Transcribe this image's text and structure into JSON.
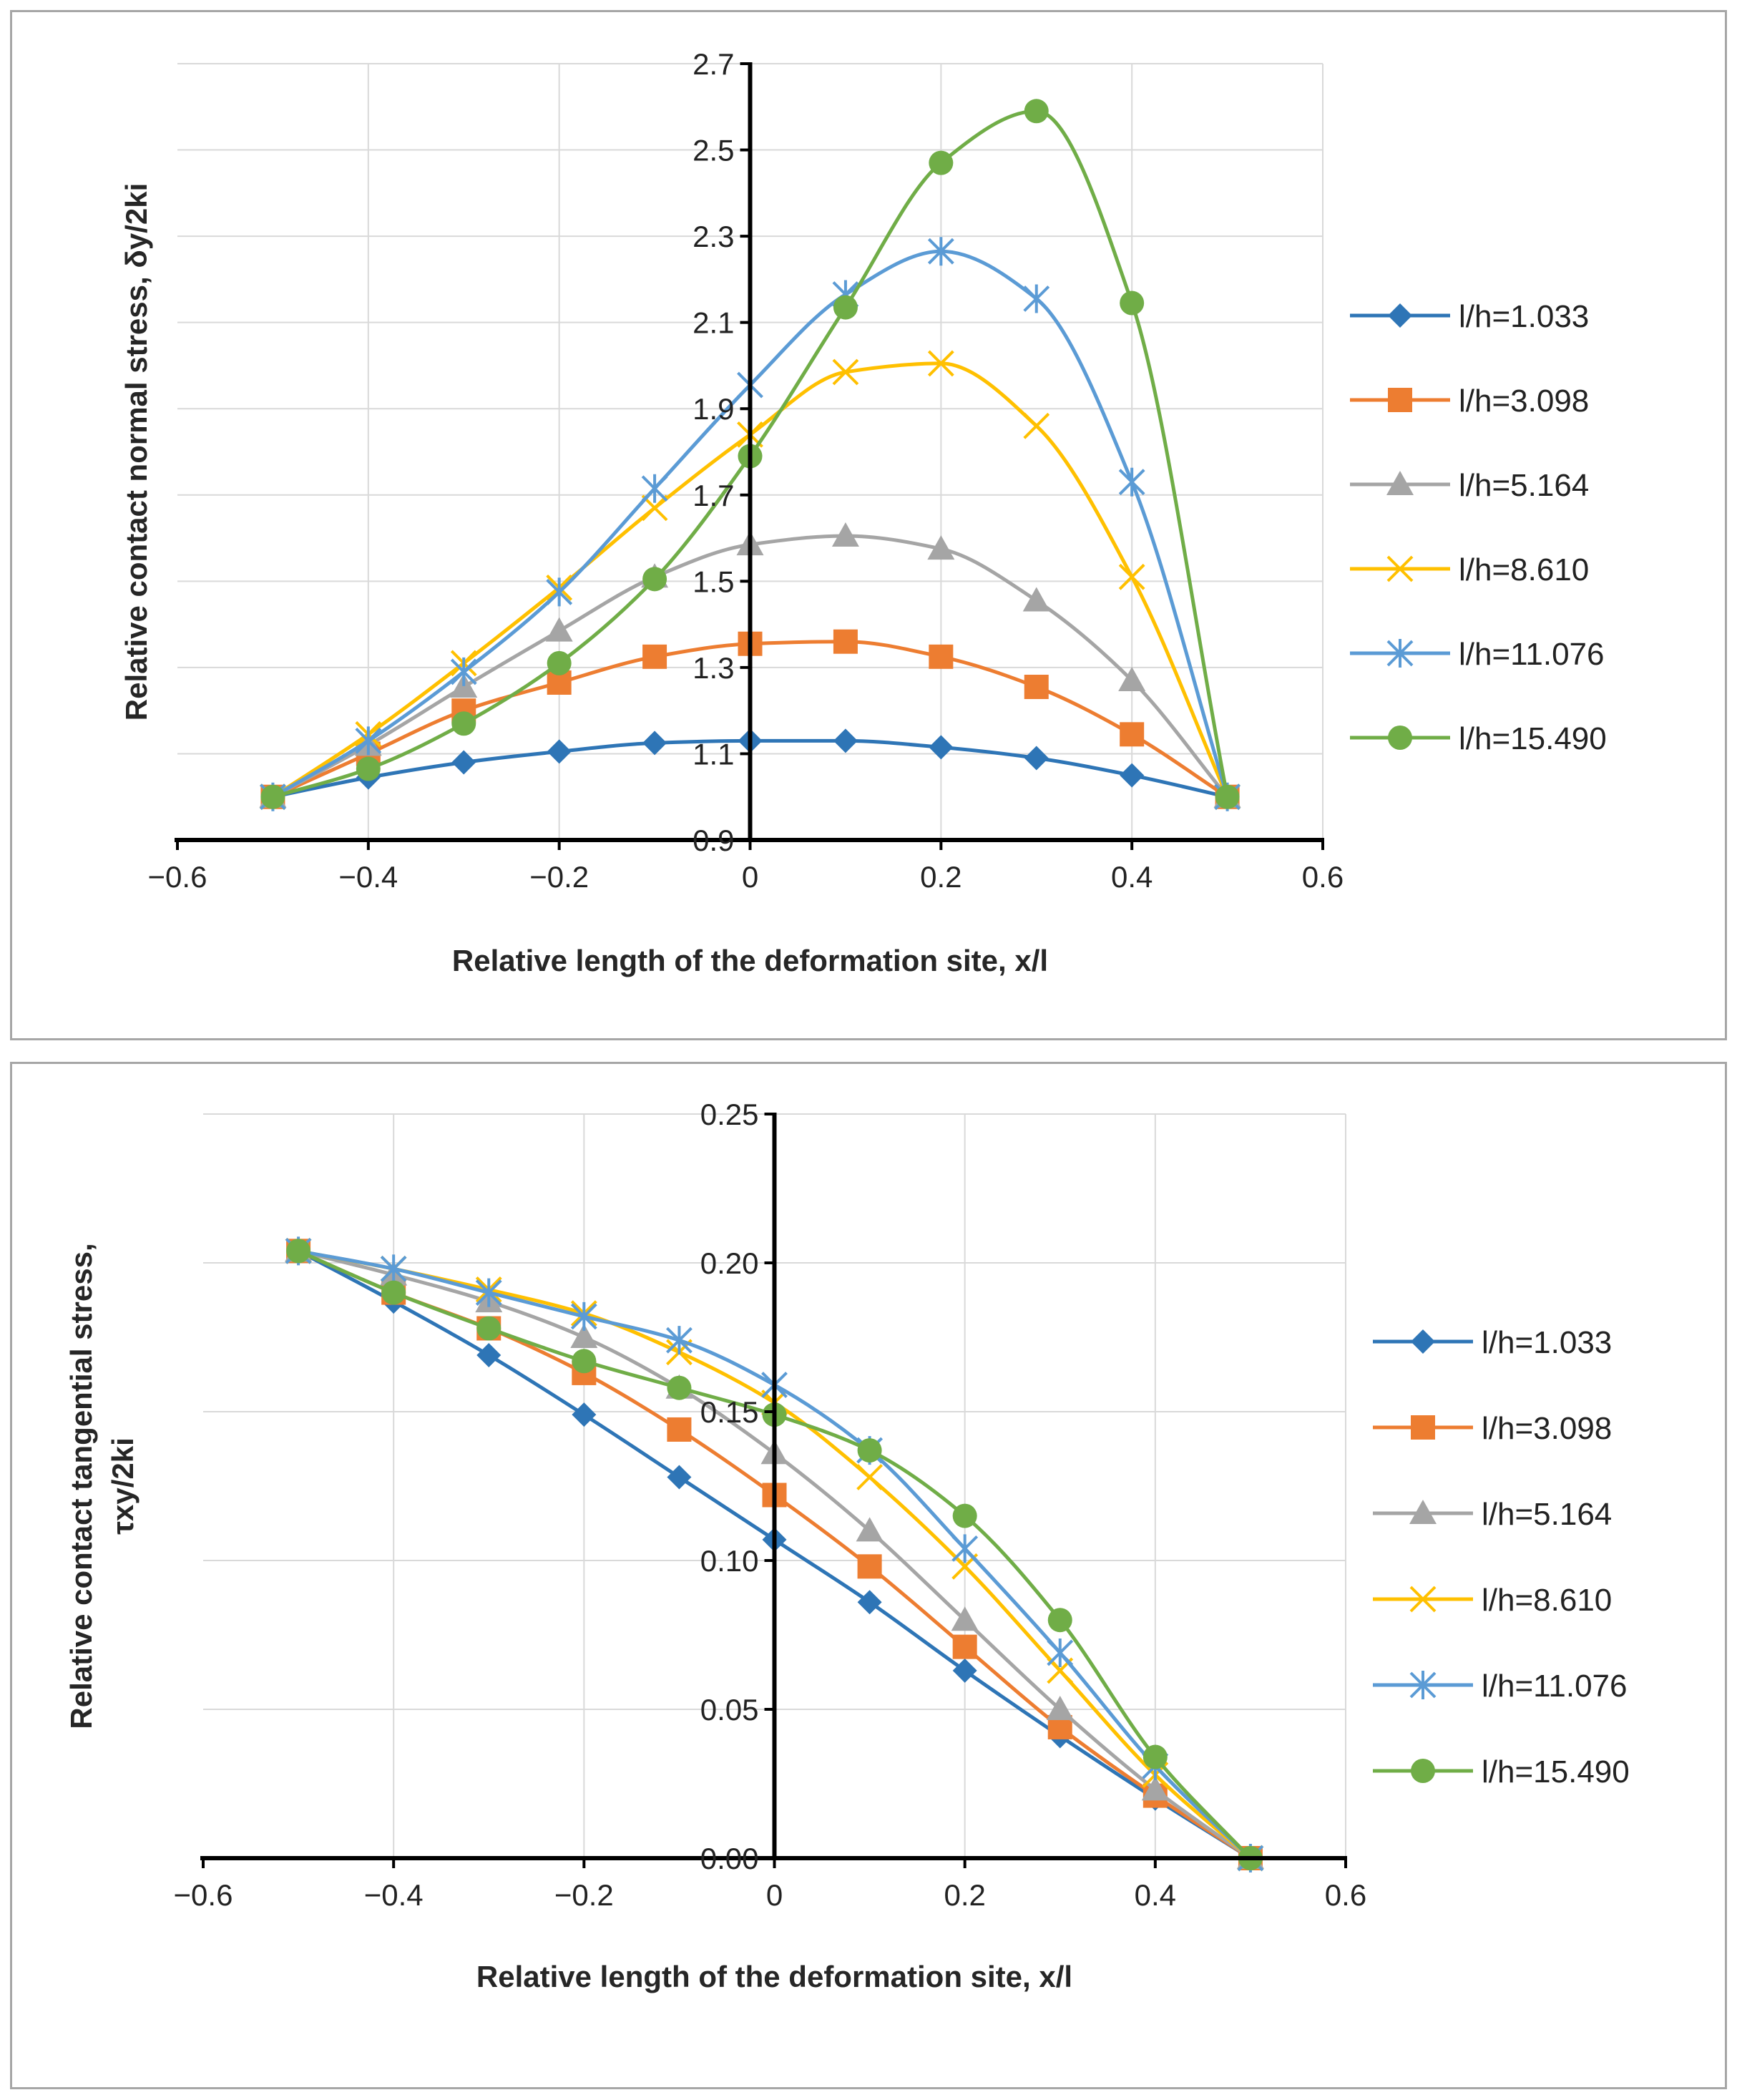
{
  "chart_data": [
    {
      "type": "line",
      "title": "",
      "xlabel": "Relative length of the deformation site, x/l",
      "ylabel": "Relative contact normal stress, δy/2ki",
      "xlim": [
        -0.6,
        0.6
      ],
      "ylim": [
        0.9,
        2.7
      ],
      "xticks": [
        -0.6,
        -0.4,
        -0.2,
        0,
        0.2,
        0.4,
        0.6
      ],
      "x_tick_labels": [
        "−0.6",
        "−0.4",
        "−0.2",
        "0",
        "0.2",
        "0.4",
        "0.6"
      ],
      "yticks": [
        0.9,
        1.1,
        1.3,
        1.5,
        1.7,
        1.9,
        2.1,
        2.3,
        2.5,
        2.7
      ],
      "y_tick_labels": [
        "0.9",
        "1.1",
        "1.3",
        "1.5",
        "1.7",
        "1.9",
        "2.1",
        "2.3",
        "2.5",
        "2.7"
      ],
      "grid": true,
      "legend_position": "right",
      "x": [
        -0.5,
        -0.4,
        -0.3,
        -0.2,
        -0.1,
        0,
        0.1,
        0.2,
        0.3,
        0.4,
        0.5
      ],
      "series": [
        {
          "name": "l/h=1.033",
          "color": "#2e75b6",
          "marker": "diamond",
          "values": [
            1.0,
            1.045,
            1.08,
            1.105,
            1.125,
            1.13,
            1.13,
            1.115,
            1.09,
            1.05,
            1.0
          ]
        },
        {
          "name": "l/h=3.098",
          "color": "#ed7d31",
          "marker": "square",
          "values": [
            1.0,
            1.1,
            1.2,
            1.265,
            1.325,
            1.355,
            1.36,
            1.325,
            1.255,
            1.145,
            1.0
          ]
        },
        {
          "name": "l/h=5.164",
          "color": "#a5a5a5",
          "marker": "triangle",
          "values": [
            1.0,
            1.12,
            1.255,
            1.385,
            1.51,
            1.585,
            1.605,
            1.575,
            1.455,
            1.27,
            1.0
          ]
        },
        {
          "name": "l/h=8.610",
          "color": "#ffc000",
          "marker": "x",
          "values": [
            1.0,
            1.145,
            1.31,
            1.485,
            1.67,
            1.84,
            1.985,
            2.005,
            1.86,
            1.51,
            1.0
          ]
        },
        {
          "name": "l/h=11.076",
          "color": "#5b9bd5",
          "marker": "asterisk",
          "values": [
            1.0,
            1.13,
            1.29,
            1.475,
            1.715,
            1.955,
            2.165,
            2.265,
            2.155,
            1.73,
            1.0
          ]
        },
        {
          "name": "l/h=15.490",
          "color": "#70ad47",
          "marker": "circle",
          "values": [
            1.0,
            1.065,
            1.17,
            1.31,
            1.505,
            1.79,
            2.135,
            2.47,
            2.59,
            2.145,
            1.0
          ]
        }
      ]
    },
    {
      "type": "line",
      "title": "",
      "xlabel": "Relative length of the deformation site, x/l",
      "ylabel": "Relative contact tangential stress, τxy/2ki",
      "ylabel_lines": [
        "Relative contact tangential stress,",
        "τxy/2ki"
      ],
      "xlim": [
        -0.6,
        0.6
      ],
      "ylim": [
        0.0,
        0.25
      ],
      "xticks": [
        -0.6,
        -0.4,
        -0.2,
        0,
        0.2,
        0.4,
        0.6
      ],
      "x_tick_labels": [
        "−0.6",
        "−0.4",
        "−0.2",
        "0",
        "0.2",
        "0.4",
        "0.6"
      ],
      "yticks": [
        0.0,
        0.05,
        0.1,
        0.15,
        0.2,
        0.25
      ],
      "y_tick_labels": [
        "0.00",
        "0.05",
        "0.10",
        "0.15",
        "0.20",
        "0.25"
      ],
      "grid": true,
      "legend_position": "right",
      "x": [
        -0.5,
        -0.4,
        -0.3,
        -0.2,
        -0.1,
        0,
        0.1,
        0.2,
        0.3,
        0.4,
        0.5
      ],
      "series": [
        {
          "name": "l/h=1.033",
          "color": "#2e75b6",
          "marker": "diamond",
          "values": [
            0.204,
            0.187,
            0.169,
            0.149,
            0.128,
            0.107,
            0.086,
            0.063,
            0.041,
            0.02,
            0.0
          ]
        },
        {
          "name": "l/h=3.098",
          "color": "#ed7d31",
          "marker": "square",
          "values": [
            0.204,
            0.19,
            0.178,
            0.163,
            0.144,
            0.122,
            0.098,
            0.071,
            0.044,
            0.021,
            0.0
          ]
        },
        {
          "name": "l/h=5.164",
          "color": "#a5a5a5",
          "marker": "triangle",
          "values": [
            0.204,
            0.196,
            0.187,
            0.175,
            0.158,
            0.136,
            0.11,
            0.08,
            0.05,
            0.023,
            0.0
          ]
        },
        {
          "name": "l/h=8.610",
          "color": "#ffc000",
          "marker": "x",
          "values": [
            0.204,
            0.198,
            0.191,
            0.183,
            0.17,
            0.153,
            0.128,
            0.098,
            0.063,
            0.028,
            0.0
          ]
        },
        {
          "name": "l/h=11.076",
          "color": "#5b9bd5",
          "marker": "asterisk",
          "values": [
            0.204,
            0.198,
            0.19,
            0.182,
            0.174,
            0.159,
            0.137,
            0.104,
            0.069,
            0.031,
            0.0
          ]
        },
        {
          "name": "l/h=15.490",
          "color": "#70ad47",
          "marker": "circle",
          "values": [
            0.204,
            0.19,
            0.178,
            0.167,
            0.158,
            0.149,
            0.137,
            0.115,
            0.08,
            0.034,
            0.0
          ]
        }
      ]
    }
  ]
}
